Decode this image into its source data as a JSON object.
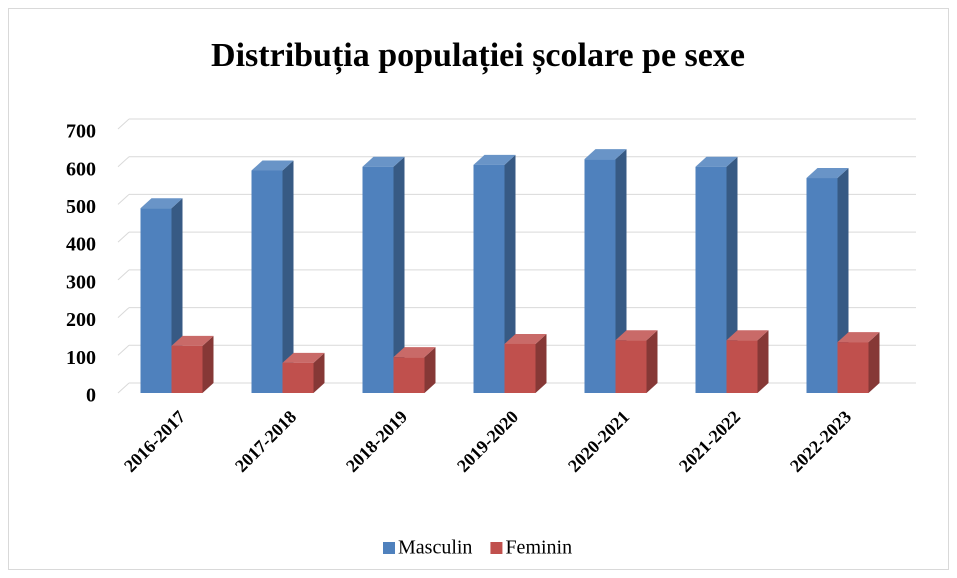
{
  "chart_data": {
    "type": "bar3d",
    "title": "Distribuția populației școlare pe sexe",
    "categories": [
      "2016-2017",
      "2017-2018",
      "2018-2019",
      "2019-2020",
      "2020-2021",
      "2021-2022",
      "2022-2023"
    ],
    "series": [
      {
        "name": "Masculin",
        "color": "#4f81bd",
        "values": [
          490,
          590,
          600,
          605,
          620,
          600,
          570
        ]
      },
      {
        "name": "Feminin",
        "color": "#c0504d",
        "values": [
          125,
          80,
          95,
          130,
          140,
          140,
          135
        ]
      }
    ],
    "ylim": [
      0,
      700
    ],
    "yticks": [
      0,
      100,
      200,
      300,
      400,
      500,
      600,
      700
    ],
    "grid": true,
    "legend": "bottom"
  }
}
